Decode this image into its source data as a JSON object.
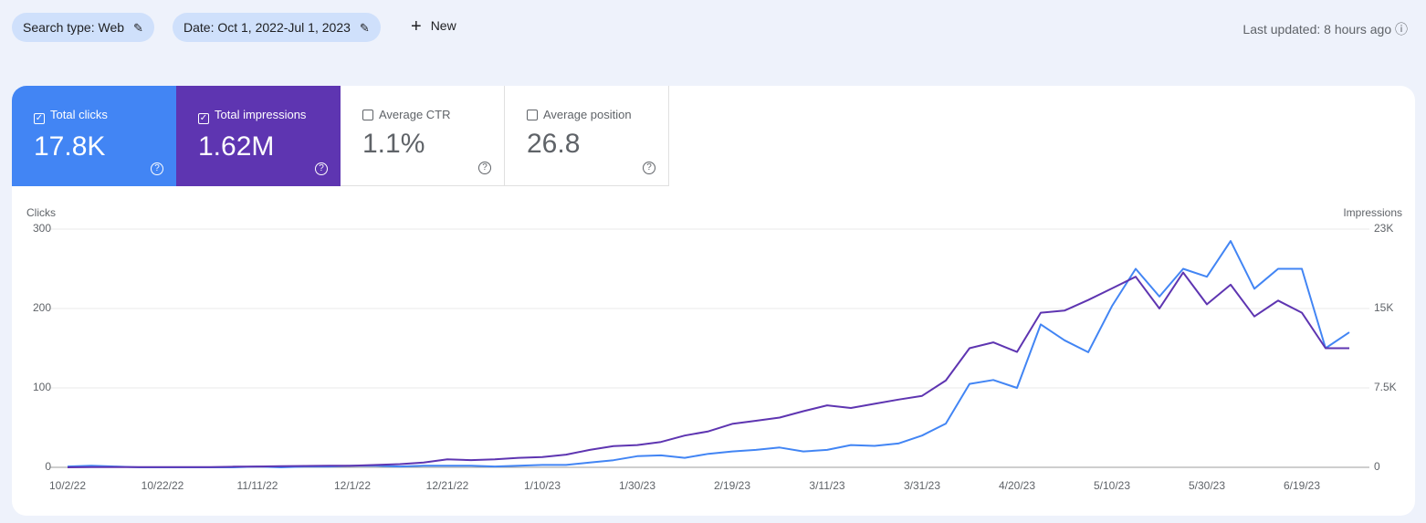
{
  "toolbar": {
    "filters": [
      "Search type: Web",
      "Date: Oct 1, 2022-Jul 1, 2023"
    ],
    "new_button": "New",
    "last_updated": "Last updated: 8 hours ago"
  },
  "metrics": [
    {
      "label": "Total clicks",
      "value": "17.8K",
      "checked": true
    },
    {
      "label": "Total impressions",
      "value": "1.62M",
      "checked": true
    },
    {
      "label": "Average CTR",
      "value": "1.1%",
      "checked": false
    },
    {
      "label": "Average position",
      "value": "26.8",
      "checked": false
    }
  ],
  "chart_data": {
    "type": "line",
    "y_label": "Clicks",
    "y2_label": "Impressions",
    "x": [
      "10/2/22",
      "10/7/22",
      "10/12/22",
      "10/17/22",
      "10/22/22",
      "10/27/22",
      "11/1/22",
      "11/6/22",
      "11/11/22",
      "11/16/22",
      "11/21/22",
      "11/26/22",
      "12/1/22",
      "12/6/22",
      "12/11/22",
      "12/16/22",
      "12/21/22",
      "12/26/22",
      "12/31/22",
      "1/5/23",
      "1/10/23",
      "1/15/23",
      "1/20/23",
      "1/25/23",
      "1/30/23",
      "2/4/23",
      "2/9/23",
      "2/14/23",
      "2/19/23",
      "2/24/23",
      "3/1/23",
      "3/6/23",
      "3/11/23",
      "3/16/23",
      "3/21/23",
      "3/26/23",
      "3/31/23",
      "4/5/23",
      "4/10/23",
      "4/15/23",
      "4/20/23",
      "4/25/23",
      "4/30/23",
      "5/5/23",
      "5/10/23",
      "5/15/23",
      "5/20/23",
      "5/25/23",
      "5/30/23",
      "6/4/23",
      "6/9/23",
      "6/14/23",
      "6/19/23",
      "6/24/23",
      "6/29/23"
    ],
    "series": [
      {
        "name": "Clicks",
        "color": "#4285f4",
        "values": [
          1,
          2,
          1,
          0,
          0,
          0,
          0,
          0,
          1,
          0,
          1,
          1,
          2,
          2,
          1,
          2,
          2,
          2,
          1,
          2,
          3,
          3,
          6,
          9,
          14,
          15,
          12,
          17,
          20,
          22,
          25,
          20,
          22,
          28,
          27,
          30,
          40,
          55,
          105,
          110,
          100,
          180,
          160,
          145,
          203,
          250,
          215,
          250,
          240,
          285,
          225,
          250,
          250,
          150,
          170
        ]
      },
      {
        "name": "Impressions",
        "color": "#5e35b1",
        "axis": "y2",
        "values": [
          0,
          30,
          30,
          20,
          20,
          20,
          30,
          60,
          80,
          100,
          130,
          150,
          150,
          220,
          300,
          450,
          750,
          680,
          750,
          900,
          975,
          1200,
          1650,
          2000,
          2100,
          2400,
          3000,
          3400,
          4100,
          4400,
          4700,
          5300,
          5850,
          5600,
          6000,
          6400,
          6750,
          8200,
          11250,
          11800,
          10900,
          14600,
          14800,
          15800,
          16900,
          18000,
          15000,
          18400,
          15400,
          17250,
          14250,
          15750,
          14600,
          11250,
          11250
        ]
      }
    ],
    "xlim": [
      "10/2/22",
      "6/29/23"
    ],
    "xticks": [
      "10/2/22",
      "10/22/22",
      "11/11/22",
      "12/1/22",
      "12/21/22",
      "1/10/23",
      "1/30/23",
      "2/19/23",
      "3/11/23",
      "3/31/23",
      "4/20/23",
      "5/10/23",
      "5/30/23",
      "6/19/23"
    ],
    "ylim": [
      0,
      300
    ],
    "yticks": [
      0,
      100,
      200,
      300
    ],
    "y2lim": [
      0,
      22500
    ],
    "y2ticks": [
      0,
      {
        "value": 7500,
        "label": "7.5K"
      },
      {
        "value": 15000,
        "label": "15K"
      },
      {
        "value": 22500,
        "label": "23K"
      }
    ],
    "grid": true
  }
}
